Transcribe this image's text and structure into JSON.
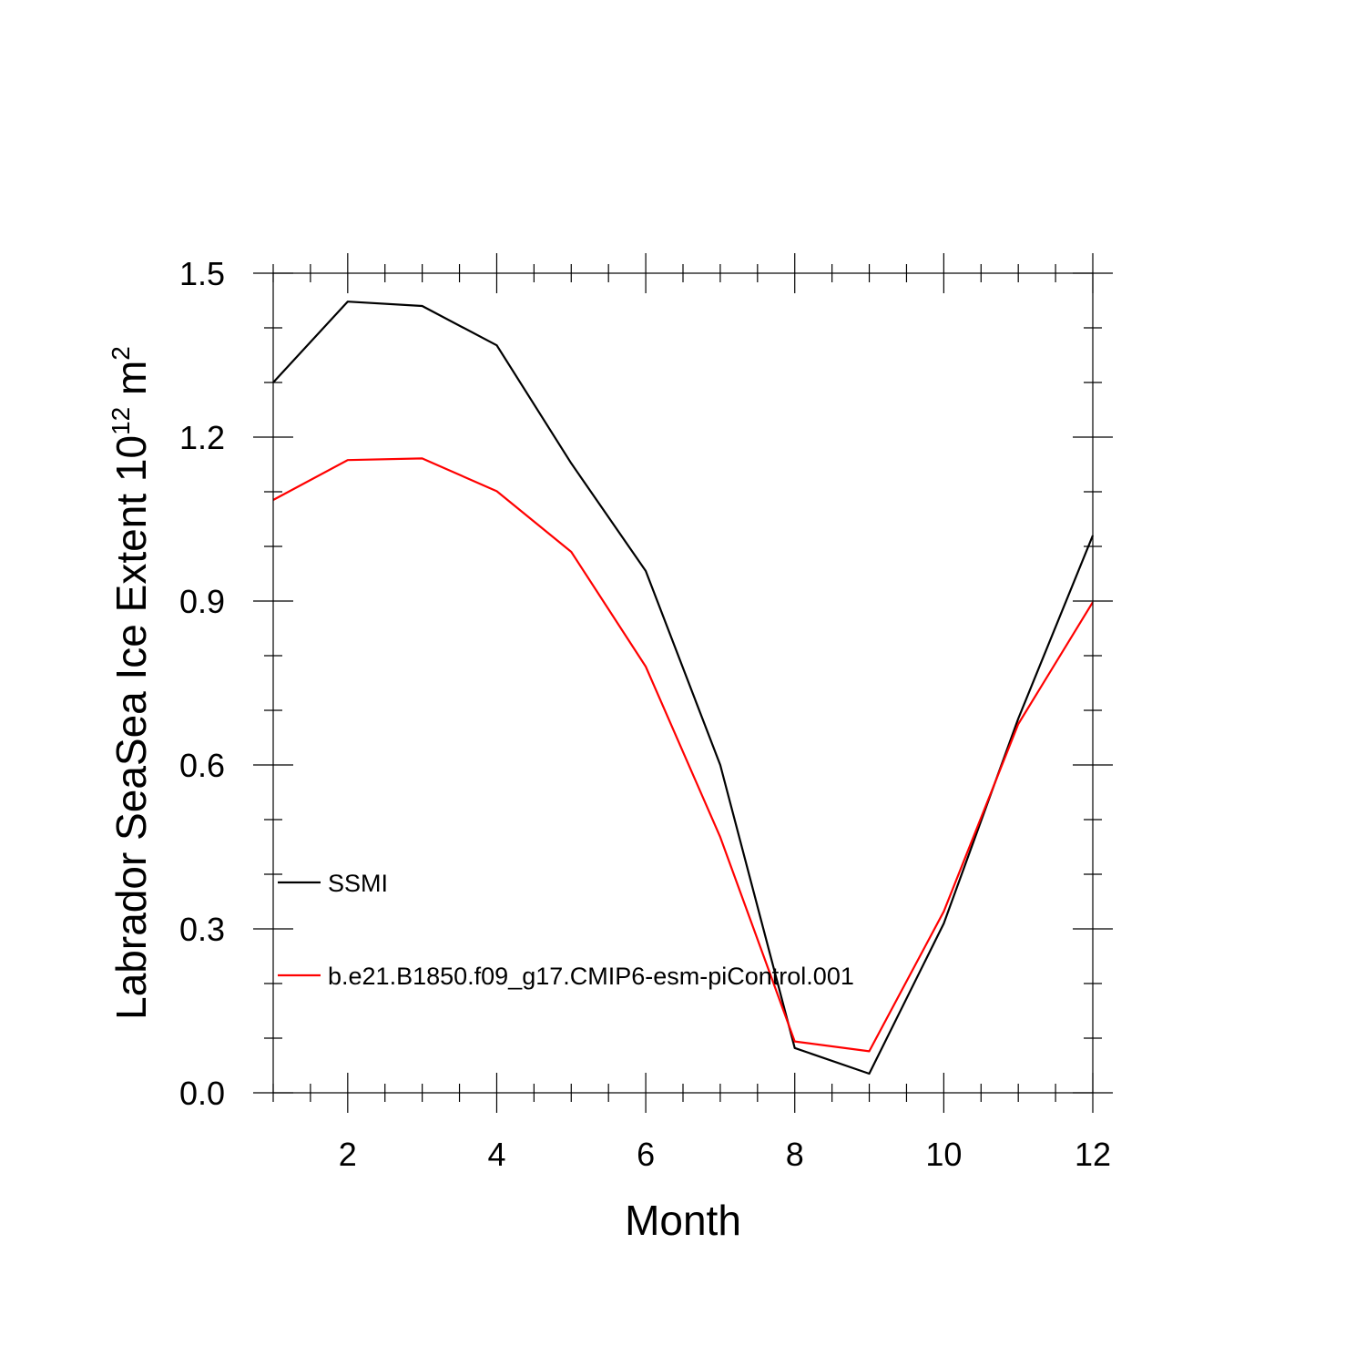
{
  "chart_data": {
    "type": "line",
    "title": "",
    "xlabel": "Month",
    "ylabel": {
      "main": "Labrador SeaSea Ice Extent 10",
      "exponent": "12",
      "unit": " m",
      "unit_exponent": "2"
    },
    "xlim": [
      1,
      12
    ],
    "ylim": [
      0.0,
      1.5
    ],
    "x_ticks": [
      2,
      4,
      6,
      8,
      10,
      12
    ],
    "x_tick_labels": [
      "2",
      "4",
      "6",
      "8",
      "10",
      "12"
    ],
    "y_ticks": [
      0.0,
      0.3,
      0.6,
      0.9,
      1.2,
      1.5
    ],
    "y_tick_labels": [
      "0.0",
      "0.3",
      "0.6",
      "0.9",
      "1.2",
      "1.5"
    ],
    "grid": false,
    "legend_position": "lower-left inside plot",
    "x": [
      1,
      2,
      3,
      4,
      5,
      6,
      7,
      8,
      9,
      10,
      11,
      12
    ],
    "series": [
      {
        "name": "SSMI",
        "color": "#000000",
        "values": [
          1.3,
          1.448,
          1.44,
          1.368,
          1.152,
          0.955,
          0.6,
          0.082,
          0.035,
          0.31,
          0.685,
          1.02
        ]
      },
      {
        "name": "b.e21.B1850.f09_g17.CMIP6-esm-piControl.001",
        "color": "#ff0000",
        "values": [
          1.085,
          1.158,
          1.161,
          1.101,
          0.99,
          0.78,
          0.468,
          0.094,
          0.076,
          0.332,
          0.675,
          0.898
        ]
      }
    ]
  }
}
